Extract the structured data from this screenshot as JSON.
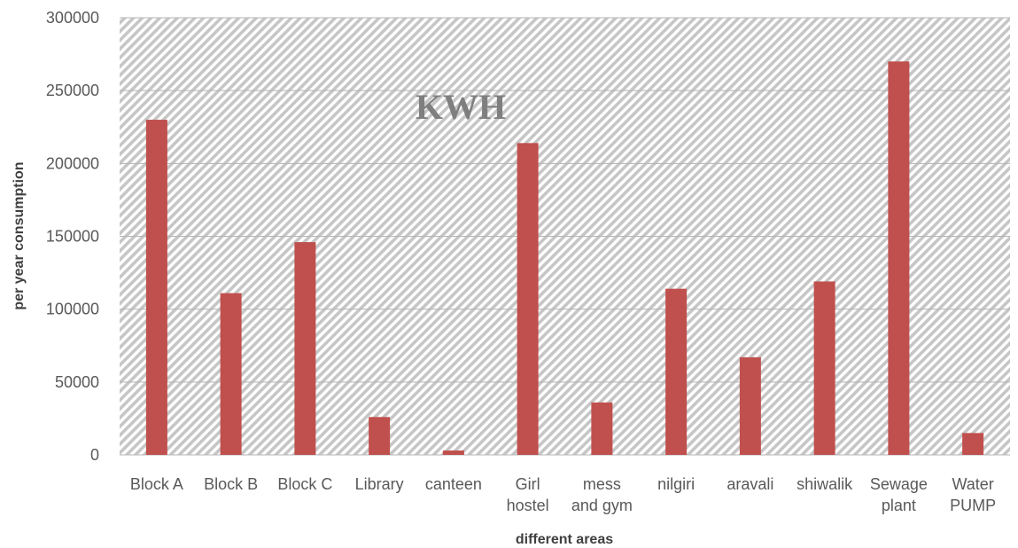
{
  "chart_data": {
    "type": "bar",
    "title": "KWH",
    "xlabel": "different areas",
    "ylabel": "per year consumption",
    "categories": [
      [
        "Block A"
      ],
      [
        "Block B"
      ],
      [
        "Block C"
      ],
      [
        "Library"
      ],
      [
        "canteen"
      ],
      [
        "Girl",
        "hostel"
      ],
      [
        "mess",
        "and gym"
      ],
      [
        "nilgiri"
      ],
      [
        "aravali"
      ],
      [
        "shiwalik"
      ],
      [
        "Sewage",
        "plant"
      ],
      [
        "Water",
        "PUMP"
      ]
    ],
    "values": [
      230000,
      111000,
      146000,
      26000,
      3000,
      214000,
      36000,
      114000,
      67000,
      119000,
      270000,
      15000
    ],
    "ylim": [
      0,
      300000
    ],
    "yticks": [
      "0",
      "50000",
      "100000",
      "150000",
      "200000",
      "250000",
      "300000"
    ],
    "grid": true,
    "bar_color": "#c0504d",
    "plot_background": "hatched light gray"
  }
}
